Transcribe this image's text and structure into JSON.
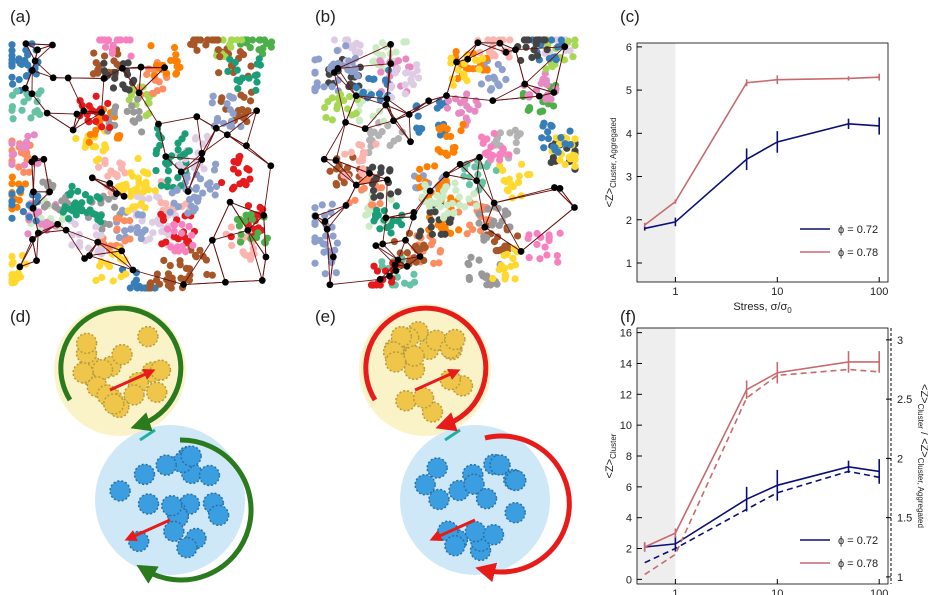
{
  "panel_labels": [
    "(a)",
    "(b)",
    "(c)",
    "(d)",
    "(e)",
    "(f)"
  ],
  "chart_data": [
    {
      "type": "line",
      "xscale": "log",
      "xlim": [
        0.42,
        122
      ],
      "xticks": [
        1,
        10,
        100
      ],
      "ylim": [
        0.56,
        6.09
      ],
      "yticks": [
        1,
        2,
        3,
        4,
        5,
        6
      ],
      "shade_to": 1,
      "xlabel": [
        "Stress, σ/σ",
        "0"
      ],
      "ylabel": [
        "<Z>",
        "Cluster, Aggregated"
      ],
      "legend": "lower right",
      "x": [
        0.5,
        1,
        5,
        10,
        50,
        100
      ],
      "series": [
        {
          "name": "ϕ = 0.72",
          "color": "#0a0f78",
          "values": [
            1.8,
            1.95,
            3.4,
            3.8,
            4.22,
            4.17
          ],
          "errors": [
            0.05,
            0.1,
            0.25,
            0.25,
            0.12,
            0.2
          ]
        },
        {
          "name": "ϕ = 0.78",
          "color": "#c8696e",
          "values": [
            1.88,
            2.42,
            5.17,
            5.24,
            5.27,
            5.3
          ],
          "errors": [
            0.05,
            0.05,
            0.08,
            0.1,
            0.05,
            0.08
          ]
        }
      ]
    },
    {
      "type": "line",
      "xscale": "log",
      "xlim": [
        0.42,
        122
      ],
      "xticks": [
        1,
        10,
        100
      ],
      "ylim": [
        -0.3,
        16.3
      ],
      "yticks": [
        0,
        2,
        4,
        6,
        8,
        10,
        12,
        14,
        16
      ],
      "y2lim": [
        0.94,
        3.1
      ],
      "y2ticks": [
        1,
        1.5,
        2,
        2.5,
        3
      ],
      "shade_to": 1,
      "xlabel": [
        "Stress, σ/σ",
        "0"
      ],
      "ylabel": [
        "<Z>",
        "Cluster"
      ],
      "y2label": [
        "<Z>",
        "Cluster",
        " / <Z>",
        "Cluster, Aggregated"
      ],
      "legend": "lower right",
      "x": [
        0.5,
        1,
        5,
        10,
        50,
        100
      ],
      "series": [
        {
          "name": "ϕ = 0.72",
          "color": "#0a0f78",
          "values": [
            2.1,
            2.3,
            5.2,
            6.1,
            7.3,
            7.0
          ],
          "errors": [
            0.3,
            0.5,
            0.8,
            1,
            0.4,
            0.8
          ]
        },
        {
          "name": "ϕ = 0.78",
          "color": "#c8696e",
          "values": [
            2.1,
            3.0,
            12.3,
            13.4,
            14.1,
            14.1
          ],
          "errors": [
            0.3,
            0.3,
            0.6,
            0.7,
            0.7,
            0.7
          ]
        },
        {
          "color": "#0a0f78",
          "dash": true,
          "axis": "y2",
          "values": [
            1.12,
            1.24,
            1.57,
            1.71,
            1.89,
            1.84
          ]
        },
        {
          "color": "#c8696e",
          "dash": true,
          "axis": "y2",
          "values": [
            1.02,
            1.19,
            2.51,
            2.7,
            2.75,
            2.73
          ]
        }
      ]
    }
  ]
}
